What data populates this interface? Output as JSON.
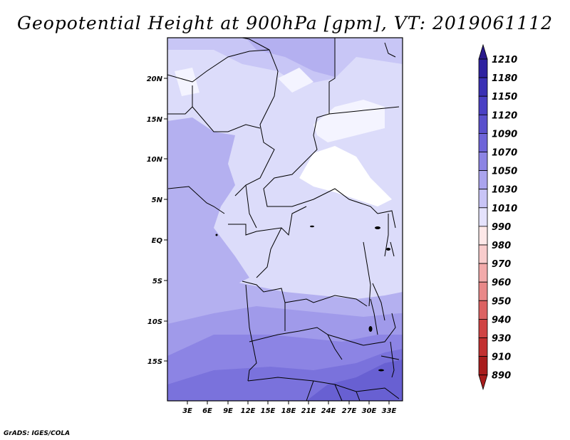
{
  "title": "Geopotential Height at 900hPa [gpm], VT: 2019061112",
  "credit": "GrADS: IGES/COLA",
  "map": {
    "lat_labels": [
      "20N",
      "15N",
      "10N",
      "5N",
      "EQ",
      "5S",
      "10S",
      "15S"
    ],
    "lon_labels": [
      "3E",
      "6E",
      "9E",
      "12E",
      "15E",
      "18E",
      "21E",
      "24E",
      "27E",
      "30E",
      "33E"
    ]
  },
  "colorbar": {
    "levels": [
      "1210",
      "1180",
      "1150",
      "1120",
      "1090",
      "1070",
      "1050",
      "1030",
      "1010",
      "990",
      "980",
      "970",
      "960",
      "950",
      "940",
      "930",
      "910",
      "890"
    ],
    "colors": [
      "#2a1a8c",
      "#2e22a0",
      "#3a30b4",
      "#4a40c4",
      "#5a50cc",
      "#6e64d8",
      "#8c84e4",
      "#aaa4ee",
      "#c8c4f6",
      "#e4e2fc",
      "#fde8e8",
      "#f8cccc",
      "#f2aaaa",
      "#e88888",
      "#dc6262",
      "#d04444",
      "#c23030",
      "#a81c1c"
    ]
  }
}
